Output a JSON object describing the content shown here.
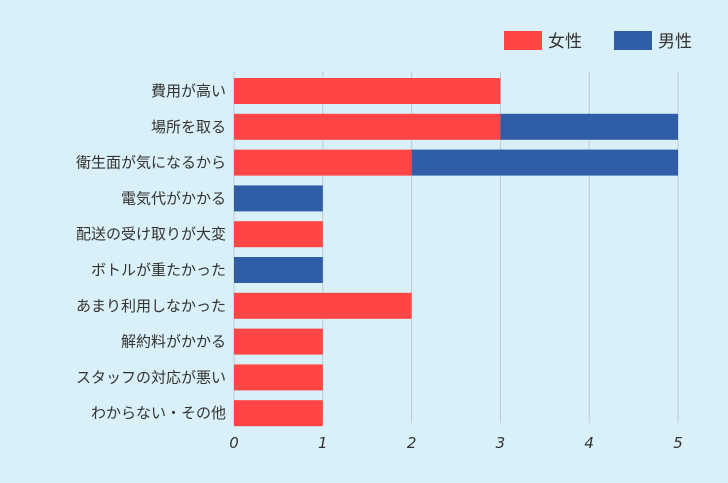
{
  "chart_data": {
    "type": "bar",
    "orientation": "horizontal",
    "stacked": true,
    "categories": [
      "費用が高い",
      "場所を取る",
      "衛生面が気になるから",
      "電気代がかかる",
      "配送の受け取りが大変",
      "ボトルが重たかった",
      "あまり利用しなかった",
      "解約料がかかる",
      "スタッフの対応が悪い",
      "わからない・その他"
    ],
    "series": [
      {
        "name": "女性",
        "color": "#ff4545",
        "values": [
          3,
          3,
          2,
          0,
          1,
          0,
          2,
          1,
          1,
          1
        ]
      },
      {
        "name": "男性",
        "color": "#2f5ea6",
        "values": [
          0,
          2,
          3,
          1,
          0,
          1,
          0,
          0,
          0,
          0
        ]
      }
    ],
    "xlim": [
      0,
      5
    ],
    "xticks": [
      "0",
      "1",
      "2",
      "3",
      "4",
      "5"
    ],
    "grid": true,
    "legend_position": "top-right"
  }
}
